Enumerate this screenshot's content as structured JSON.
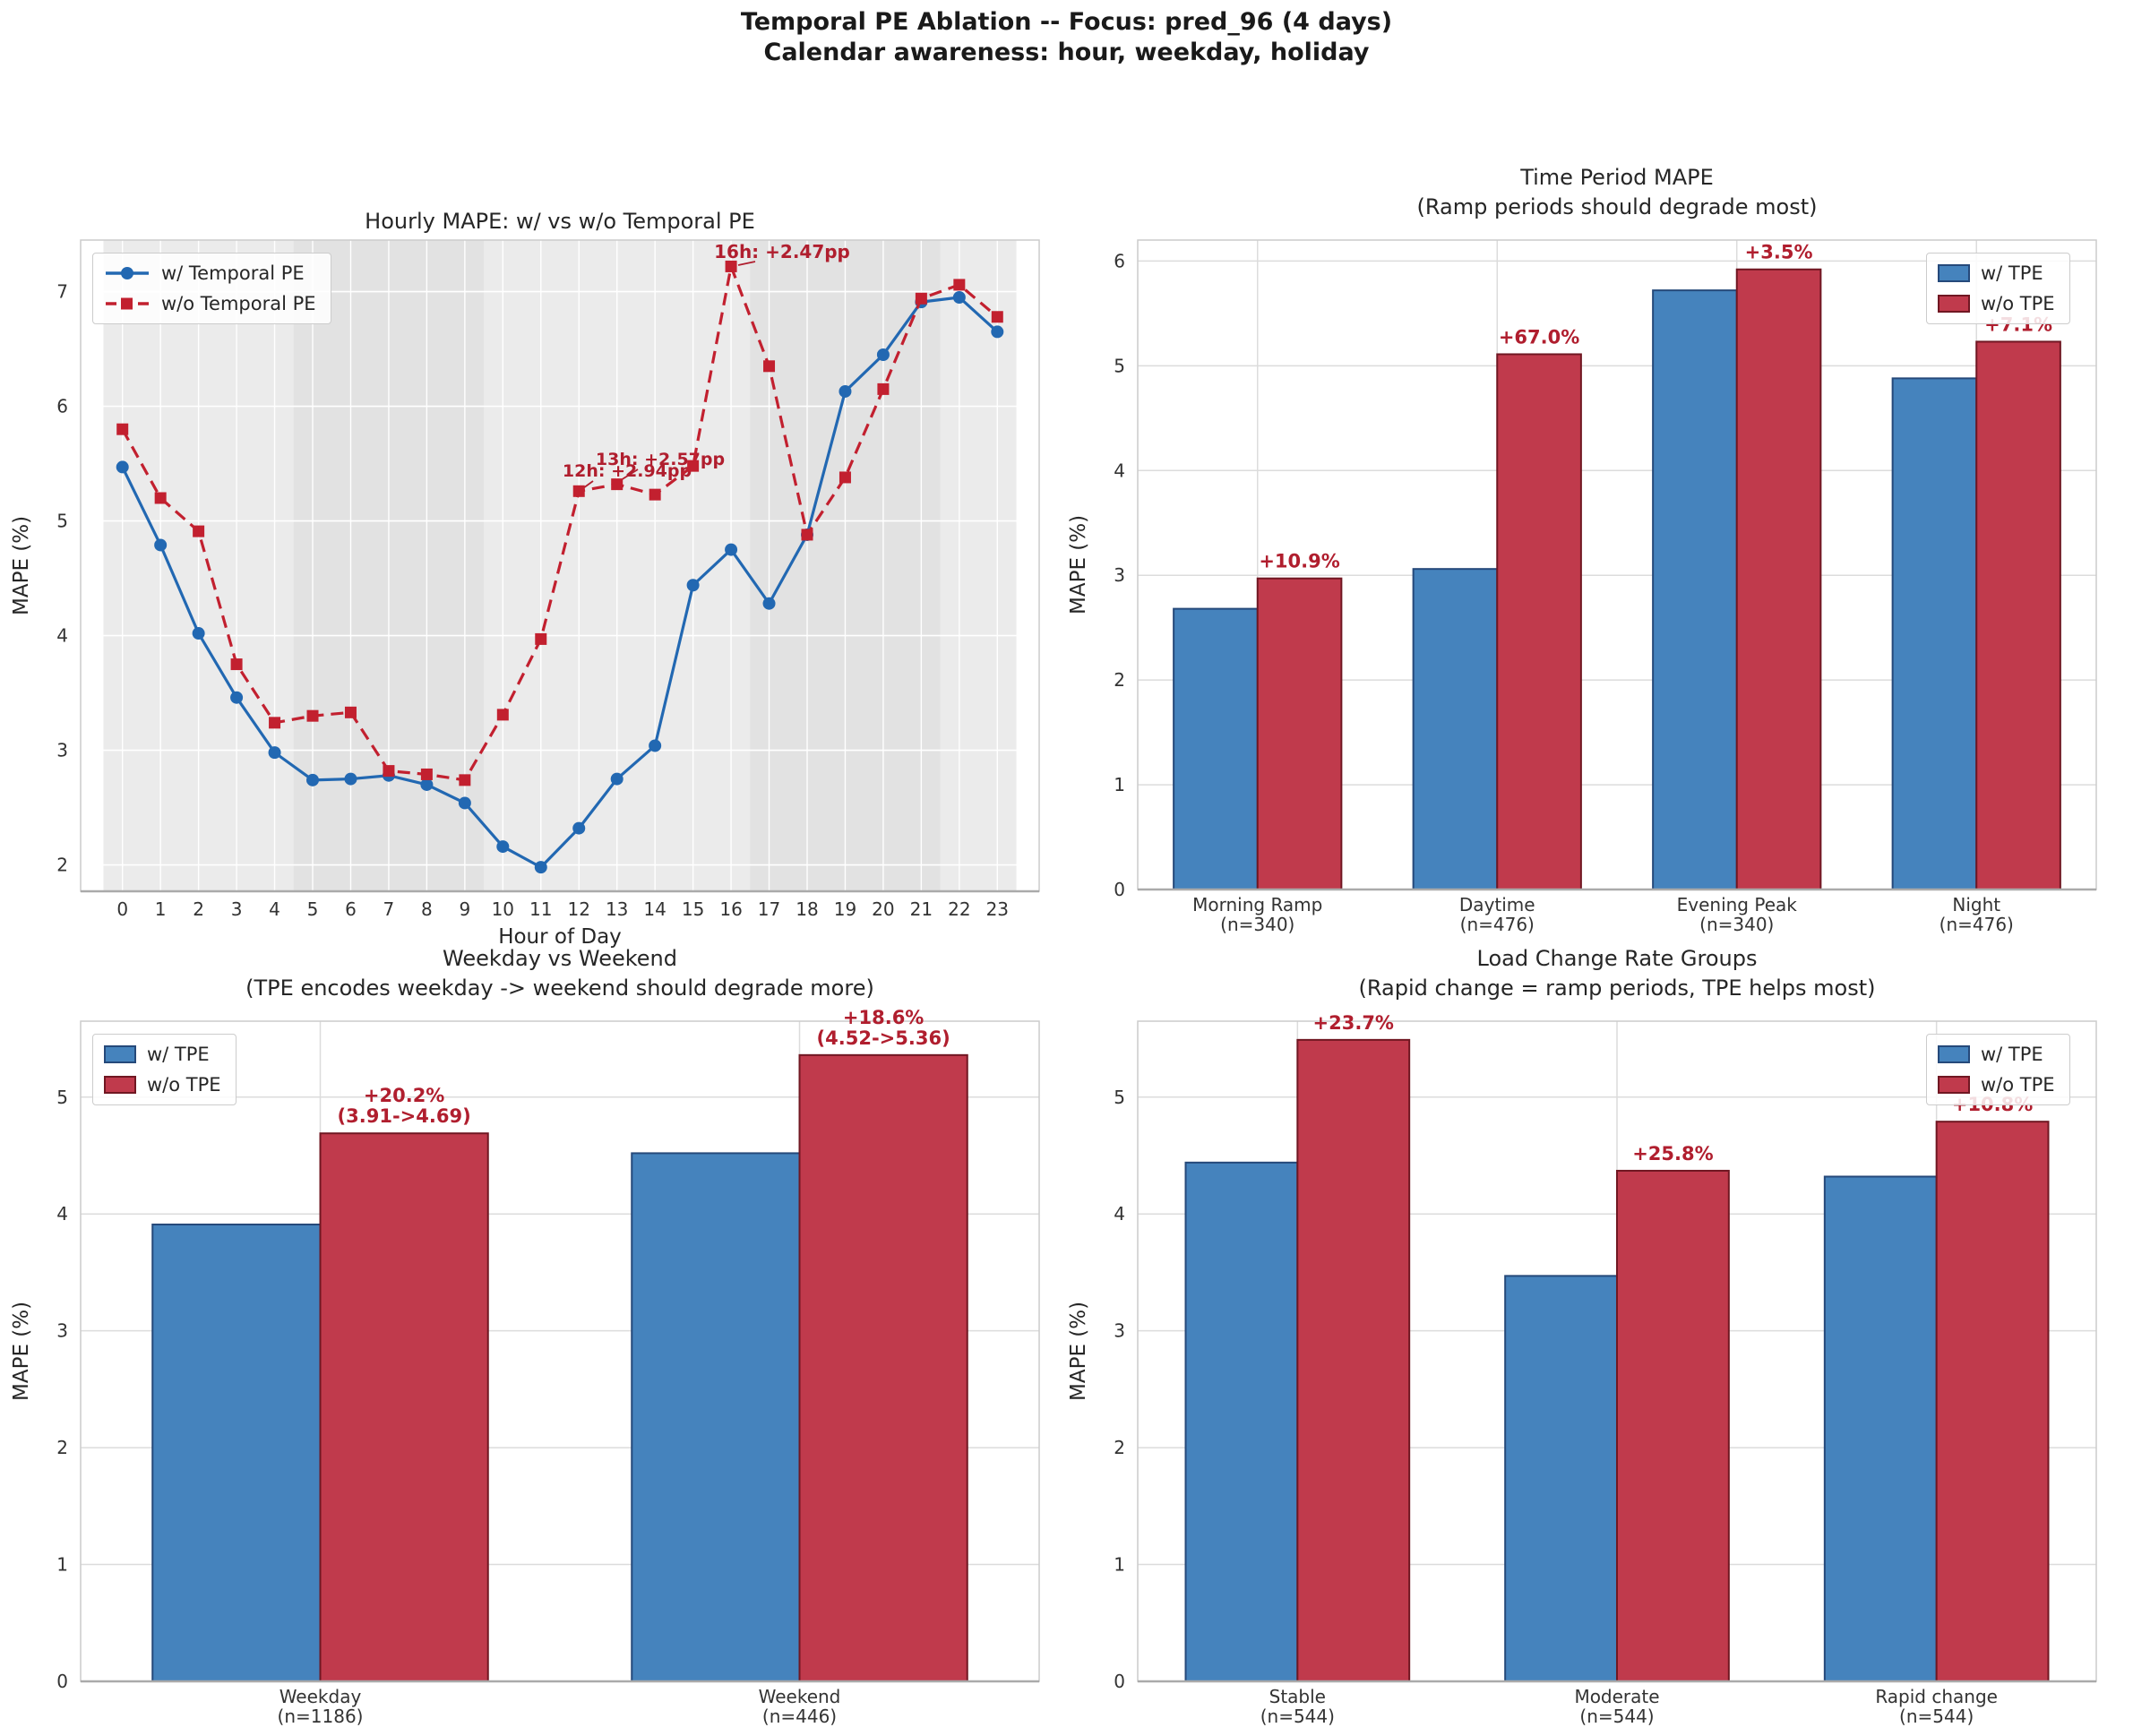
{
  "figure": {
    "title_line1": "Temporal PE Ablation -- Focus: pred_96 (4 days)",
    "title_line2": "Calendar awareness: hour, weekday, holiday"
  },
  "colors": {
    "bar_with_fill": "#4583bd",
    "bar_with_edge": "#25497a",
    "bar_without_fill": "#c03a4c",
    "bar_without_edge": "#701722",
    "line_with": "#2268b2",
    "line_without": "#c2202f",
    "annotation_red": "#b01e2e",
    "grid_on_white": "#dcdcdc",
    "grid_on_gray": "#ffffff",
    "plot_border": "#cccccc",
    "bottom_spine": "#aaaaaa",
    "tick_text": "#333333",
    "line_plot_bg": "#ebebeb",
    "band_shade": "rgba(0,0,0,0.035)"
  },
  "chart_data": [
    {
      "id": "hourly",
      "type": "line",
      "title": "Hourly MAPE: w/ vs w/o Temporal PE",
      "xlabel": "Hour of Day",
      "ylabel": "MAPE (%)",
      "legend": [
        "w/ Temporal PE",
        "w/o Temporal PE"
      ],
      "x": [
        0,
        1,
        2,
        3,
        4,
        5,
        6,
        7,
        8,
        9,
        10,
        11,
        12,
        13,
        14,
        15,
        16,
        17,
        18,
        19,
        20,
        21,
        22,
        23
      ],
      "series": [
        {
          "name": "w/ Temporal PE",
          "values": [
            5.47,
            4.79,
            4.02,
            3.46,
            2.98,
            2.74,
            2.75,
            2.78,
            2.7,
            2.54,
            2.16,
            1.98,
            2.32,
            2.75,
            3.04,
            4.44,
            4.75,
            4.28,
            4.88,
            6.13,
            6.45,
            6.91,
            6.95,
            6.65
          ]
        },
        {
          "name": "w/o Temporal PE",
          "values": [
            5.8,
            5.2,
            4.91,
            3.75,
            3.24,
            3.3,
            3.33,
            2.82,
            2.79,
            2.74,
            3.31,
            3.97,
            5.26,
            5.32,
            5.23,
            5.48,
            7.22,
            6.35,
            4.88,
            5.38,
            6.15,
            6.94,
            7.06,
            6.78
          ]
        }
      ],
      "yticks": [
        2,
        3,
        4,
        5,
        6,
        7
      ],
      "ylim": [
        1.77,
        7.45
      ],
      "xlim": [
        -1.1,
        24.1
      ],
      "annotations": [
        {
          "text": "12h: +2.94pp",
          "target_hour": 12
        },
        {
          "text": "13h: +2.57pp",
          "target_hour": 13
        },
        {
          "text": "16h: +2.47pp",
          "target_hour": 16
        }
      ],
      "shaded_hours": [
        [
          -0.5,
          23.5
        ]
      ],
      "darker_bands": [
        [
          4.5,
          9.5
        ],
        [
          16.5,
          21.5
        ]
      ],
      "grid": true,
      "legend_position": "upper left"
    },
    {
      "id": "time_period",
      "type": "bar",
      "title": "Time Period MAPE",
      "subtitle": "(Ramp periods should degrade most)",
      "ylabel": "MAPE (%)",
      "legend": [
        "w/ TPE",
        "w/o TPE"
      ],
      "categories": [
        "Morning Ramp",
        "Daytime",
        "Evening Peak",
        "Night"
      ],
      "counts": [
        "(n=340)",
        "(n=476)",
        "(n=340)",
        "(n=476)"
      ],
      "series": [
        {
          "name": "w/ TPE",
          "values": [
            2.68,
            3.06,
            5.72,
            4.88
          ]
        },
        {
          "name": "w/o TPE",
          "values": [
            2.97,
            5.11,
            5.92,
            5.23
          ]
        }
      ],
      "annotations": [
        [
          "+10.9%"
        ],
        [
          "+67.0%"
        ],
        [
          "+3.5%"
        ],
        [
          "+7.1%"
        ]
      ],
      "yticks": [
        0,
        1,
        2,
        3,
        4,
        5,
        6
      ],
      "ylim": [
        0,
        6.2
      ],
      "grid": true,
      "legend_position": "upper right"
    },
    {
      "id": "weekday_weekend",
      "type": "bar",
      "title": "Weekday vs Weekend",
      "subtitle": "(TPE encodes weekday -> weekend should degrade more)",
      "ylabel": "MAPE (%)",
      "legend": [
        "w/ TPE",
        "w/o TPE"
      ],
      "categories": [
        "Weekday",
        "Weekend"
      ],
      "counts": [
        "(n=1186)",
        "(n=446)"
      ],
      "series": [
        {
          "name": "w/ TPE",
          "values": [
            3.91,
            4.52
          ]
        },
        {
          "name": "w/o TPE",
          "values": [
            4.69,
            5.36
          ]
        }
      ],
      "annotations": [
        [
          "+20.2%",
          "(3.91->4.69)"
        ],
        [
          "+18.6%",
          "(4.52->5.36)"
        ]
      ],
      "yticks": [
        0,
        1,
        2,
        3,
        4,
        5
      ],
      "ylim": [
        0,
        5.65
      ],
      "grid": true,
      "legend_position": "upper left"
    },
    {
      "id": "load_change",
      "type": "bar",
      "title": "Load Change Rate Groups",
      "subtitle": "(Rapid change = ramp periods, TPE helps most)",
      "ylabel": "MAPE (%)",
      "legend": [
        "w/ TPE",
        "w/o TPE"
      ],
      "categories": [
        "Stable",
        "Moderate",
        "Rapid change"
      ],
      "counts": [
        "(n=544)",
        "(n=544)",
        "(n=544)"
      ],
      "series": [
        {
          "name": "w/ TPE",
          "values": [
            4.44,
            3.47,
            4.32
          ]
        },
        {
          "name": "w/o TPE",
          "values": [
            5.49,
            4.37,
            4.79
          ]
        }
      ],
      "annotations": [
        [
          "+23.7%"
        ],
        [
          "+25.8%"
        ],
        [
          "+10.8%"
        ]
      ],
      "yticks": [
        0,
        1,
        2,
        3,
        4,
        5
      ],
      "ylim": [
        0,
        5.65
      ],
      "grid": true,
      "legend_position": "upper right"
    }
  ]
}
